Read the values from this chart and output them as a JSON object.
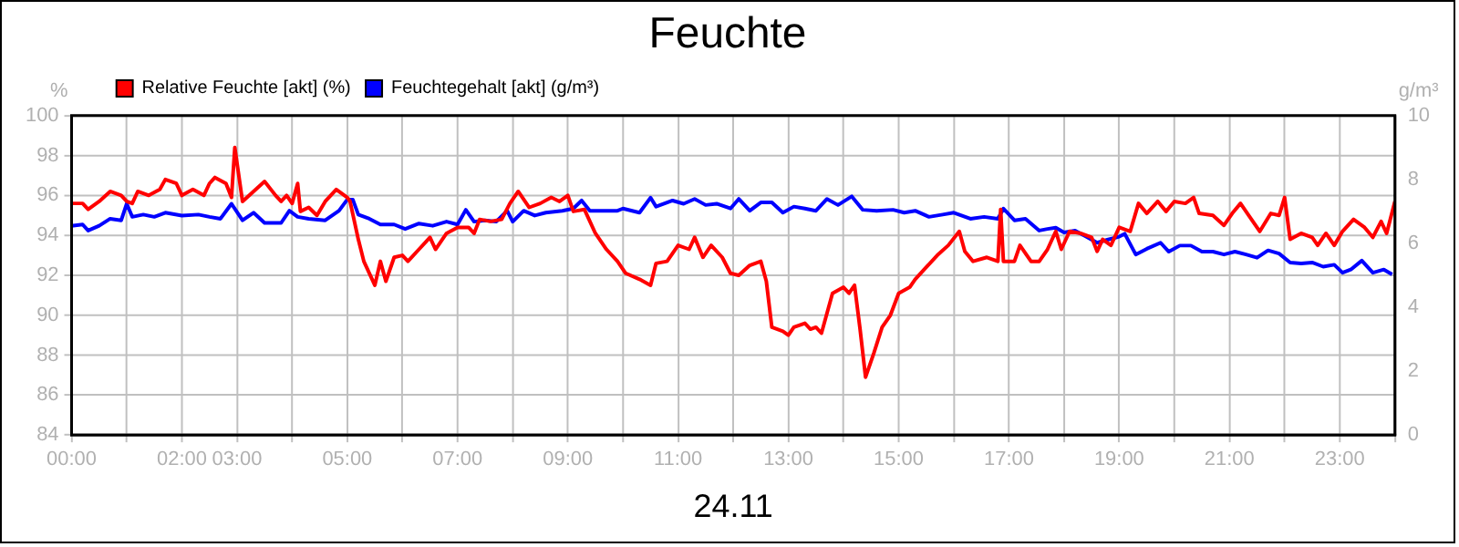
{
  "chart_data": {
    "type": "line",
    "title": "Feuchte",
    "xlabel": "24.11",
    "ylabel": "%",
    "y2label": "g/m³",
    "xlim": [
      0,
      24
    ],
    "xticks": [
      {
        "value": 0,
        "label": "00:00"
      },
      {
        "value": 1,
        "label": null
      },
      {
        "value": 2,
        "label": "02:00"
      },
      {
        "value": 3,
        "label": "03:00"
      },
      {
        "value": 4,
        "label": null
      },
      {
        "value": 5,
        "label": "05:00"
      },
      {
        "value": 6,
        "label": null
      },
      {
        "value": 7,
        "label": "07:00"
      },
      {
        "value": 8,
        "label": null
      },
      {
        "value": 9,
        "label": "09:00"
      },
      {
        "value": 10,
        "label": null
      },
      {
        "value": 11,
        "label": "11:00"
      },
      {
        "value": 12,
        "label": null
      },
      {
        "value": 13,
        "label": "13:00"
      },
      {
        "value": 14,
        "label": null
      },
      {
        "value": 15,
        "label": "15:00"
      },
      {
        "value": 16,
        "label": null
      },
      {
        "value": 17,
        "label": "17:00"
      },
      {
        "value": 18,
        "label": null
      },
      {
        "value": 19,
        "label": "19:00"
      },
      {
        "value": 20,
        "label": null
      },
      {
        "value": 21,
        "label": "21:00"
      },
      {
        "value": 22,
        "label": null
      },
      {
        "value": 23,
        "label": "23:00"
      },
      {
        "value": 24,
        "label": null
      }
    ],
    "ylim": [
      84,
      100
    ],
    "yticks": [
      84,
      86,
      88,
      90,
      92,
      94,
      96,
      98,
      100
    ],
    "y2lim": [
      0,
      10
    ],
    "y2ticks": [
      0,
      2,
      4,
      6,
      8,
      10
    ],
    "grid": true,
    "legend": "top left",
    "marker": "none",
    "line_style": "solid",
    "series": [
      {
        "name": "Relative Feuchte [akt] (%)",
        "color": "#ff0000",
        "x": [
          0,
          0.2,
          0.3,
          0.5,
          0.7,
          0.9,
          1.0,
          1.1,
          1.2,
          1.4,
          1.6,
          1.7,
          1.9,
          2.0,
          2.2,
          2.4,
          2.5,
          2.6,
          2.8,
          2.9,
          2.96,
          3.1,
          3.3,
          3.5,
          3.7,
          3.8,
          3.9,
          4.0,
          4.1,
          4.15,
          4.3,
          4.45,
          4.6,
          4.8,
          5.0,
          5.05,
          5.2,
          5.3,
          5.5,
          5.6,
          5.7,
          5.85,
          6.0,
          6.1,
          6.3,
          6.5,
          6.6,
          6.8,
          7.0,
          7.2,
          7.3,
          7.4,
          7.6,
          7.8,
          7.95,
          8.1,
          8.3,
          8.5,
          8.7,
          8.85,
          9.0,
          9.1,
          9.3,
          9.5,
          9.7,
          9.9,
          10.05,
          10.3,
          10.5,
          10.6,
          10.8,
          11.0,
          11.2,
          11.3,
          11.45,
          11.6,
          11.8,
          11.95,
          12.1,
          12.3,
          12.5,
          12.6,
          12.7,
          12.9,
          13.0,
          13.1,
          13.3,
          13.4,
          13.5,
          13.6,
          13.8,
          14.0,
          14.1,
          14.2,
          14.3,
          14.4,
          14.55,
          14.7,
          14.85,
          15.0,
          15.2,
          15.3,
          15.5,
          15.7,
          15.9,
          16.1,
          16.2,
          16.35,
          16.6,
          16.8,
          16.85,
          16.9,
          17.1,
          17.2,
          17.4,
          17.55,
          17.7,
          17.85,
          17.95,
          18.1,
          18.3,
          18.5,
          18.6,
          18.7,
          18.85,
          19.0,
          19.2,
          19.35,
          19.5,
          19.7,
          19.85,
          20.0,
          20.2,
          20.35,
          20.45,
          20.7,
          20.9,
          21.05,
          21.2,
          21.35,
          21.55,
          21.75,
          21.9,
          22.0,
          22.1,
          22.3,
          22.5,
          22.6,
          22.75,
          22.9,
          23.05,
          23.25,
          23.45,
          23.6,
          23.75,
          23.85,
          24.0
        ],
        "values": [
          95.6,
          95.6,
          95.3,
          95.7,
          96.2,
          96.0,
          95.7,
          95.6,
          96.2,
          96.0,
          96.3,
          96.8,
          96.6,
          96.0,
          96.3,
          96.0,
          96.6,
          96.9,
          96.6,
          95.9,
          98.4,
          95.7,
          96.2,
          96.7,
          96.0,
          95.7,
          96.0,
          95.6,
          96.6,
          95.2,
          95.4,
          95.0,
          95.7,
          96.3,
          95.9,
          95.7,
          93.8,
          92.7,
          91.5,
          92.7,
          91.7,
          92.9,
          93.0,
          92.7,
          93.3,
          93.9,
          93.3,
          94.1,
          94.4,
          94.4,
          94.1,
          94.8,
          94.7,
          94.8,
          95.6,
          96.2,
          95.4,
          95.6,
          95.9,
          95.7,
          96.0,
          95.2,
          95.3,
          94.1,
          93.3,
          92.7,
          92.1,
          91.8,
          91.5,
          92.6,
          92.7,
          93.5,
          93.3,
          93.9,
          92.9,
          93.5,
          92.9,
          92.1,
          92.0,
          92.5,
          92.7,
          91.7,
          89.4,
          89.2,
          89.0,
          89.4,
          89.6,
          89.3,
          89.4,
          89.1,
          91.1,
          91.4,
          91.1,
          91.5,
          89.3,
          86.9,
          88.1,
          89.4,
          90.0,
          91.1,
          91.4,
          91.8,
          92.4,
          93.0,
          93.5,
          94.2,
          93.2,
          92.7,
          92.9,
          92.7,
          95.3,
          92.7,
          92.7,
          93.5,
          92.7,
          92.7,
          93.3,
          94.2,
          93.3,
          94.2,
          94.1,
          93.9,
          93.2,
          93.8,
          93.5,
          94.4,
          94.2,
          95.6,
          95.1,
          95.7,
          95.2,
          95.7,
          95.6,
          95.9,
          95.1,
          95.0,
          94.5,
          95.1,
          95.6,
          95.0,
          94.2,
          95.1,
          95.0,
          95.9,
          93.8,
          94.1,
          93.9,
          93.5,
          94.1,
          93.5,
          94.2,
          94.8,
          94.4,
          93.9,
          94.7,
          94.1,
          95.7
        ]
      },
      {
        "name": "Feuchtegehalt [akt] (g/m³)",
        "color": "#0000ff",
        "axis": "y2",
        "x": [
          0,
          0.2,
          0.3,
          0.5,
          0.7,
          0.9,
          1.0,
          1.1,
          1.3,
          1.5,
          1.7,
          2.0,
          2.3,
          2.5,
          2.7,
          2.9,
          3.1,
          3.3,
          3.5,
          3.8,
          3.95,
          4.1,
          4.3,
          4.6,
          4.85,
          5.0,
          5.1,
          5.2,
          5.4,
          5.6,
          5.85,
          6.05,
          6.3,
          6.55,
          6.8,
          7.0,
          7.15,
          7.3,
          7.5,
          7.7,
          7.9,
          8.0,
          8.2,
          8.4,
          8.6,
          8.9,
          9.1,
          9.25,
          9.4,
          9.7,
          9.9,
          10.0,
          10.3,
          10.5,
          10.6,
          10.9,
          11.1,
          11.3,
          11.5,
          11.7,
          11.95,
          12.1,
          12.3,
          12.5,
          12.7,
          12.9,
          13.1,
          13.3,
          13.5,
          13.7,
          13.9,
          14.15,
          14.35,
          14.6,
          14.9,
          15.1,
          15.3,
          15.55,
          15.8,
          16.0,
          16.3,
          16.55,
          16.8,
          16.9,
          17.1,
          17.3,
          17.55,
          17.7,
          17.85,
          18.0,
          18.2,
          18.4,
          18.6,
          18.8,
          19.0,
          19.1,
          19.3,
          19.5,
          19.75,
          19.9,
          20.1,
          20.3,
          20.5,
          20.7,
          20.9,
          21.1,
          21.3,
          21.5,
          21.7,
          21.9,
          22.1,
          22.3,
          22.5,
          22.7,
          22.9,
          23.05,
          23.2,
          23.4,
          23.6,
          23.8,
          23.95
        ],
        "values": [
          6.55,
          6.59,
          6.4,
          6.55,
          6.77,
          6.72,
          7.24,
          6.83,
          6.9,
          6.83,
          6.96,
          6.87,
          6.9,
          6.83,
          6.77,
          7.24,
          6.72,
          6.96,
          6.64,
          6.64,
          7.02,
          6.83,
          6.77,
          6.72,
          7.02,
          7.37,
          7.37,
          6.9,
          6.77,
          6.59,
          6.59,
          6.45,
          6.62,
          6.55,
          6.68,
          6.59,
          7.05,
          6.68,
          6.72,
          6.68,
          7.02,
          6.68,
          7.02,
          6.87,
          6.96,
          7.02,
          7.09,
          7.34,
          7.02,
          7.02,
          7.02,
          7.09,
          6.96,
          7.43,
          7.15,
          7.34,
          7.24,
          7.39,
          7.2,
          7.24,
          7.09,
          7.39,
          7.02,
          7.28,
          7.28,
          6.96,
          7.15,
          7.09,
          7.02,
          7.39,
          7.2,
          7.47,
          7.05,
          7.02,
          7.05,
          6.96,
          7.02,
          6.83,
          6.9,
          6.96,
          6.77,
          6.83,
          6.77,
          7.09,
          6.72,
          6.77,
          6.4,
          6.45,
          6.49,
          6.34,
          6.4,
          6.21,
          6.02,
          6.12,
          6.21,
          6.3,
          5.65,
          5.83,
          6.02,
          5.74,
          5.93,
          5.93,
          5.74,
          5.74,
          5.65,
          5.74,
          5.65,
          5.55,
          5.78,
          5.68,
          5.4,
          5.37,
          5.4,
          5.27,
          5.33,
          5.08,
          5.18,
          5.46,
          5.08,
          5.18,
          5.03
        ]
      }
    ]
  }
}
